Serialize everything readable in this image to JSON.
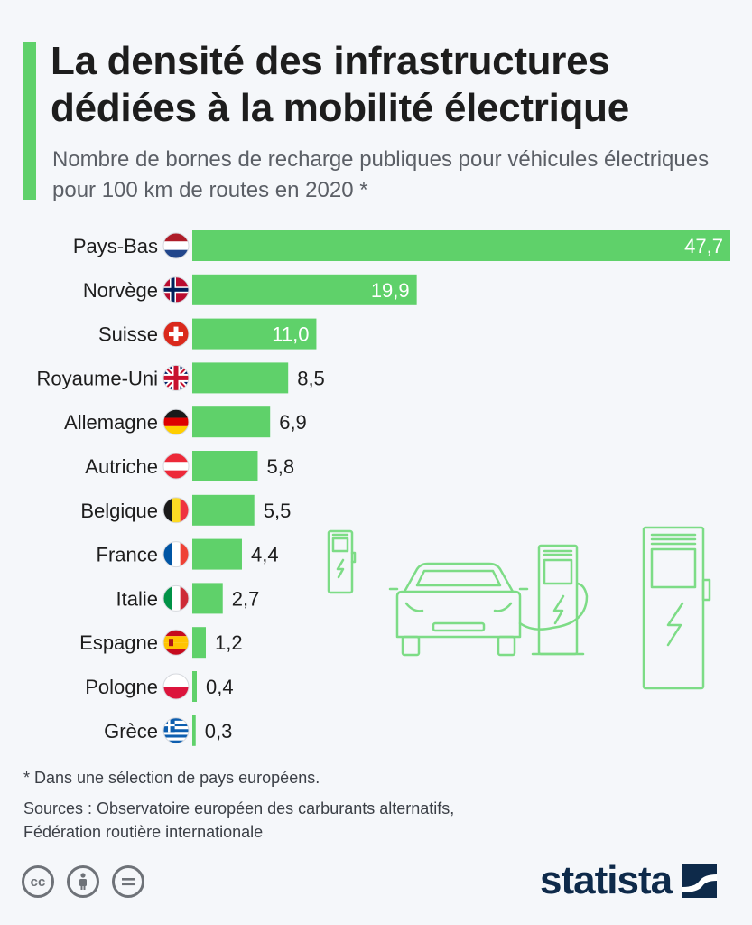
{
  "header": {
    "title": "La densité des infrastructures dédiées à la mobilité électrique",
    "subtitle": "Nombre de bornes de recharge publiques pour véhicules électriques pour 100 km de routes en 2020 *"
  },
  "chart_data": {
    "type": "bar",
    "orientation": "horizontal",
    "categories": [
      "Pays-Bas",
      "Norvège",
      "Suisse",
      "Royaume-Uni",
      "Allemagne",
      "Autriche",
      "Belgique",
      "France",
      "Italie",
      "Espagne",
      "Pologne",
      "Grèce"
    ],
    "values": [
      47.7,
      19.9,
      11.0,
      8.5,
      6.9,
      5.8,
      5.5,
      4.4,
      2.7,
      1.2,
      0.4,
      0.3
    ],
    "value_labels": [
      "47,7",
      "19,9",
      "11,0",
      "8,5",
      "6,9",
      "5,8",
      "5,5",
      "4,4",
      "2,7",
      "1,2",
      "0,4",
      "0,3"
    ],
    "flag_icons": [
      "flag-netherlands-icon",
      "flag-norway-icon",
      "flag-switzerland-icon",
      "flag-united-kingdom-icon",
      "flag-germany-icon",
      "flag-austria-icon",
      "flag-belgium-icon",
      "flag-france-icon",
      "flag-italy-icon",
      "flag-spain-icon",
      "flag-poland-icon",
      "flag-greece-icon"
    ],
    "xlim": [
      0,
      47.7
    ],
    "grid": false,
    "bar_color": "#5fd16a"
  },
  "footer": {
    "footnote": "* Dans une sélection de pays européens.",
    "sources": "Sources : Observatoire européen des carburants alternatifs, Fédération routière internationale",
    "license_icons": [
      "cc-icon",
      "attribution-icon",
      "no-derivatives-icon"
    ],
    "brand": "statista"
  },
  "colors": {
    "accent": "#5fd16a",
    "brand": "#0e2a4a",
    "background": "#f5f7fa"
  }
}
